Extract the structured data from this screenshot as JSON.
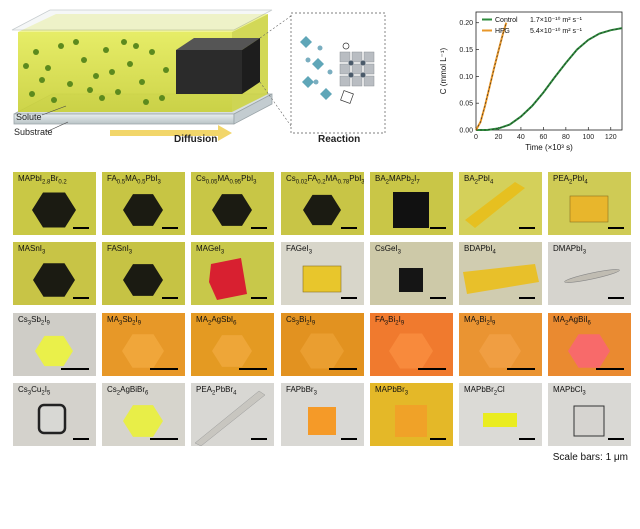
{
  "schematic": {
    "solute_label": "Solute",
    "substrate_label": "Substrate",
    "diffusion_label": "Diffusion",
    "reaction_label": "Reaction"
  },
  "chart_data": {
    "type": "line",
    "xlabel": "Time (×10³ s)",
    "ylabel": "C (mmol L⁻¹)",
    "xlim": [
      0,
      130
    ],
    "ylim": [
      0,
      0.22
    ],
    "xticks": [
      "0",
      "20",
      "40",
      "60",
      "80",
      "100",
      "120"
    ],
    "yticks": [
      "0.00",
      "0.05",
      "0.10",
      "0.15",
      "0.20"
    ],
    "series": [
      {
        "name": "Control",
        "rate": "1.7×10⁻¹⁰ m² s⁻¹",
        "color": "#2e8b3d",
        "x": [
          0,
          10,
          20,
          30,
          40,
          50,
          60,
          70,
          80,
          90,
          100,
          110,
          120,
          130
        ],
        "y": [
          0.0,
          0.0,
          0.003,
          0.01,
          0.025,
          0.045,
          0.07,
          0.098,
          0.125,
          0.15,
          0.168,
          0.18,
          0.186,
          0.19
        ]
      },
      {
        "name": "HFG",
        "rate": "5.4×10⁻¹⁰ m² s⁻¹",
        "color": "#e8972a",
        "x": [
          0,
          4,
          8,
          12,
          16,
          20,
          24,
          27
        ],
        "y": [
          0.0,
          0.015,
          0.045,
          0.08,
          0.115,
          0.148,
          0.18,
          0.2
        ]
      }
    ]
  },
  "tiles": [
    {
      "row": 0,
      "col": 0,
      "label": "MAPbI<sub>2.8</sub>Br<sub>0.2</sub>",
      "bg": "#c9c845",
      "shape": "hex",
      "fill": "#1b1b12",
      "size": 22
    },
    {
      "row": 0,
      "col": 1,
      "label": "FA<sub>0.5</sub>MA<sub>0.5</sub>PbI<sub>3</sub>",
      "bg": "#c7c544",
      "shape": "hex",
      "fill": "#1b1b12",
      "size": 20
    },
    {
      "row": 0,
      "col": 2,
      "label": "Cs<sub>0.05</sub>MA<sub>0.95</sub>PbI<sub>3</sub>",
      "bg": "#c8c646",
      "shape": "hex",
      "fill": "#1b1b12",
      "size": 20
    },
    {
      "row": 0,
      "col": 3,
      "label": "Cs<sub>0.02</sub>FA<sub>0.2</sub>MA<sub>0.78</sub>PbI<sub>3</sub>",
      "bg": "#c8c546",
      "shape": "hex",
      "fill": "#1b1b12",
      "size": 19
    },
    {
      "row": 0,
      "col": 4,
      "label": "BA<sub>2</sub>MAPb<sub>2</sub>I<sub>7</sub>",
      "bg": "#c9c647",
      "shape": "square",
      "fill": "#111111",
      "size": 36
    },
    {
      "row": 0,
      "col": 5,
      "label": "BA<sub>2</sub>PbI<sub>4</sub>",
      "bg": "#d4d05a",
      "shape": "strip",
      "fill": "#e6c020",
      "size": 0
    },
    {
      "row": 0,
      "col": 6,
      "label": "PEA<sub>2</sub>PbI<sub>4</sub>",
      "bg": "#cfcb55",
      "shape": "rect",
      "fill": "#e8b62c",
      "size": 0
    },
    {
      "row": 1,
      "col": 0,
      "label": "MASnI<sub>3</sub>",
      "bg": "#c8c446",
      "shape": "hex",
      "fill": "#1b1b12",
      "size": 21
    },
    {
      "row": 1,
      "col": 1,
      "label": "FASnI<sub>3</sub>",
      "bg": "#c6c344",
      "shape": "hex",
      "fill": "#1b1b12",
      "size": 20
    },
    {
      "row": 1,
      "col": 2,
      "label": "MAGeI<sub>3</sub>",
      "bg": "#c8c84a",
      "shape": "pent",
      "fill": "#d82030",
      "size": 0
    },
    {
      "row": 1,
      "col": 3,
      "label": "FAGeI<sub>3</sub>",
      "bg": "#d8d6ca",
      "shape": "rect",
      "fill": "#e8c62c",
      "size": 0
    },
    {
      "row": 1,
      "col": 4,
      "label": "CsGeI<sub>3</sub>",
      "bg": "#cdc9a8",
      "shape": "square",
      "fill": "#151515",
      "size": 24
    },
    {
      "row": 1,
      "col": 5,
      "label": "BDAPbI<sub>4</sub>",
      "bg": "#d0ccb0",
      "shape": "strip2",
      "fill": "#e8c02a",
      "size": 0
    },
    {
      "row": 1,
      "col": 6,
      "label": "DMAPbI<sub>3</sub>",
      "bg": "#d6d4ce",
      "shape": "needle",
      "fill": "#c0bcb2",
      "size": 0
    },
    {
      "row": 2,
      "col": 0,
      "label": "Cs<sub>3</sub>Sb<sub>2</sub>I<sub>9</sub>",
      "bg": "#cfcdc7",
      "shape": "hex",
      "fill": "#eaf04a",
      "size": 19
    },
    {
      "row": 2,
      "col": 1,
      "label": "MA<sub>3</sub>Sb<sub>2</sub>I<sub>9</sub>",
      "bg": "#e79828",
      "shape": "hex",
      "fill": "#f0a63a",
      "size": 21
    },
    {
      "row": 2,
      "col": 2,
      "label": "MA<sub>2</sub>AgSbI<sub>6</sub>",
      "bg": "#e49a22",
      "shape": "hex",
      "fill": "#eea638",
      "size": 20
    },
    {
      "row": 2,
      "col": 3,
      "label": "Cs<sub>3</sub>Bi<sub>2</sub>I<sub>9</sub>",
      "bg": "#e29220",
      "shape": "hex",
      "fill": "#ea9e30",
      "size": 22
    },
    {
      "row": 2,
      "col": 4,
      "label": "FA<sub>3</sub>Bi<sub>2</sub>I<sub>9</sub>",
      "bg": "#f07a2e",
      "shape": "hex",
      "fill": "#f88a3c",
      "size": 22
    },
    {
      "row": 2,
      "col": 5,
      "label": "MA<sub>3</sub>Bi<sub>2</sub>I<sub>9</sub>",
      "bg": "#ea9432",
      "shape": "hex",
      "fill": "#f09e42",
      "size": 21
    },
    {
      "row": 2,
      "col": 6,
      "label": "MA<sub>2</sub>AgBiI<sub>6</sub>",
      "bg": "#ea8a30",
      "shape": "hex",
      "fill": "#f86a6a",
      "size": 21
    },
    {
      "row": 3,
      "col": 0,
      "label": "Cs<sub>3</sub>Cu<sub>2</sub>I<sub>5</sub>",
      "bg": "#d4d2cc",
      "shape": "outline",
      "fill": "#d8d8d4",
      "size": 0
    },
    {
      "row": 3,
      "col": 1,
      "label": "Cs<sub>2</sub>AgBiBr<sub>6</sub>",
      "bg": "#d6d4cc",
      "shape": "hex",
      "fill": "#e8ee48",
      "size": 20
    },
    {
      "row": 3,
      "col": 2,
      "label": "PEA<sub>2</sub>PbBr<sub>4</sub>",
      "bg": "#d8d7d3",
      "shape": "diag",
      "fill": "#c8c6c0",
      "size": 0
    },
    {
      "row": 3,
      "col": 3,
      "label": "FAPbBr<sub>3</sub>",
      "bg": "#d9d8d4",
      "shape": "square",
      "fill": "#f59a28",
      "size": 28
    },
    {
      "row": 3,
      "col": 4,
      "label": "MAPbBr<sub>3</sub>",
      "bg": "#e4b828",
      "shape": "square",
      "fill": "#f0a228",
      "size": 32
    },
    {
      "row": 3,
      "col": 5,
      "label": "MAPbBr<sub>2</sub>Cl",
      "bg": "#dbdad6",
      "shape": "rect2",
      "fill": "#eaec20",
      "size": 0
    },
    {
      "row": 3,
      "col": 6,
      "label": "MAPbCl<sub>3</sub>",
      "bg": "#d9d8d4",
      "shape": "sqout",
      "fill": "#d6d4d0",
      "size": 30
    }
  ],
  "scale_note": "Scale bars: 1 μm"
}
